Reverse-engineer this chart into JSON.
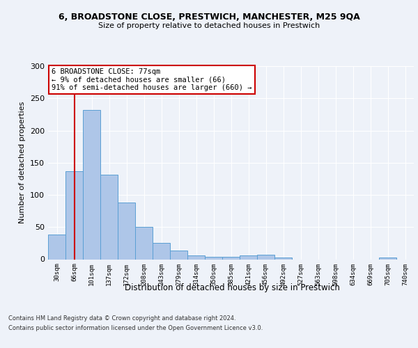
{
  "title1": "6, BROADSTONE CLOSE, PRESTWICH, MANCHESTER, M25 9QA",
  "title2": "Size of property relative to detached houses in Prestwich",
  "xlabel": "Distribution of detached houses by size in Prestwich",
  "ylabel": "Number of detached properties",
  "bin_labels": [
    "30sqm",
    "66sqm",
    "101sqm",
    "137sqm",
    "172sqm",
    "208sqm",
    "243sqm",
    "279sqm",
    "314sqm",
    "350sqm",
    "385sqm",
    "421sqm",
    "456sqm",
    "492sqm",
    "527sqm",
    "563sqm",
    "598sqm",
    "634sqm",
    "669sqm",
    "705sqm",
    "740sqm"
  ],
  "bar_values": [
    38,
    137,
    232,
    131,
    88,
    50,
    25,
    13,
    6,
    4,
    4,
    6,
    7,
    3,
    0,
    0,
    0,
    0,
    0,
    3,
    0
  ],
  "bar_color": "#aec6e8",
  "bar_edge_color": "#5a9fd4",
  "vline_x": 1,
  "vline_color": "#cc0000",
  "annotation_text": "6 BROADSTONE CLOSE: 77sqm\n← 9% of detached houses are smaller (66)\n91% of semi-detached houses are larger (660) →",
  "annotation_box_color": "#ffffff",
  "annotation_box_edge": "#cc0000",
  "ylim": [
    0,
    300
  ],
  "yticks": [
    0,
    50,
    100,
    150,
    200,
    250,
    300
  ],
  "footer1": "Contains HM Land Registry data © Crown copyright and database right 2024.",
  "footer2": "Contains public sector information licensed under the Open Government Licence v3.0.",
  "bg_color": "#eef2f9",
  "plot_bg_color": "#eef2f9"
}
